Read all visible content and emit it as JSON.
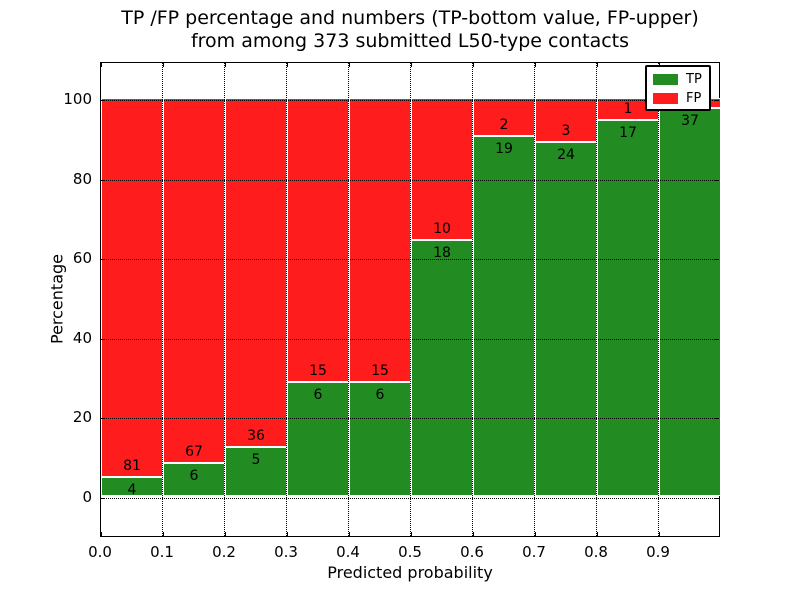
{
  "title": {
    "line1": "TP /FP percentage and numbers (TP-bottom value, FP-upper)",
    "line2": "from among 373 submitted L50-type contacts"
  },
  "chart_data": {
    "type": "bar",
    "stacked": true,
    "normalized_to_percent": true,
    "title": "TP /FP percentage and numbers (TP-bottom value, FP-upper) from among 373 submitted L50-type contacts",
    "xlabel": "Predicted probability",
    "ylabel": "Percentage",
    "categories": [
      "0.0-0.1",
      "0.1-0.2",
      "0.2-0.3",
      "0.3-0.4",
      "0.4-0.5",
      "0.5-0.6",
      "0.6-0.7",
      "0.7-0.8",
      "0.8-0.9",
      "0.9-1.0"
    ],
    "series": [
      {
        "name": "TP",
        "color": "#228b22",
        "values": [
          4,
          6,
          5,
          6,
          6,
          18,
          19,
          24,
          17,
          37
        ]
      },
      {
        "name": "FP",
        "color": "#ff1c1c",
        "values": [
          81,
          67,
          36,
          15,
          15,
          10,
          2,
          3,
          1,
          1
        ]
      }
    ],
    "tp_percent_of_bin": [
      4.7,
      8.2,
      12.2,
      28.6,
      28.6,
      64.3,
      90.5,
      88.9,
      94.4,
      97.4
    ],
    "x_tick_labels": [
      "0.0",
      "0.1",
      "0.2",
      "0.3",
      "0.4",
      "0.5",
      "0.6",
      "0.7",
      "0.8",
      "0.9"
    ],
    "y_ticks": [
      0,
      20,
      40,
      60,
      80,
      100
    ],
    "y_tick_labels": [
      "0",
      "20",
      "40",
      "60",
      "80",
      "100"
    ],
    "xlim": [
      0.0,
      1.0
    ],
    "ylim": [
      -10,
      109.5
    ],
    "grid": "dotted",
    "legend": {
      "position": "upper right",
      "entries": [
        {
          "label": "TP",
          "color": "#228b22"
        },
        {
          "label": "FP",
          "color": "#ff1c1c"
        }
      ]
    }
  }
}
